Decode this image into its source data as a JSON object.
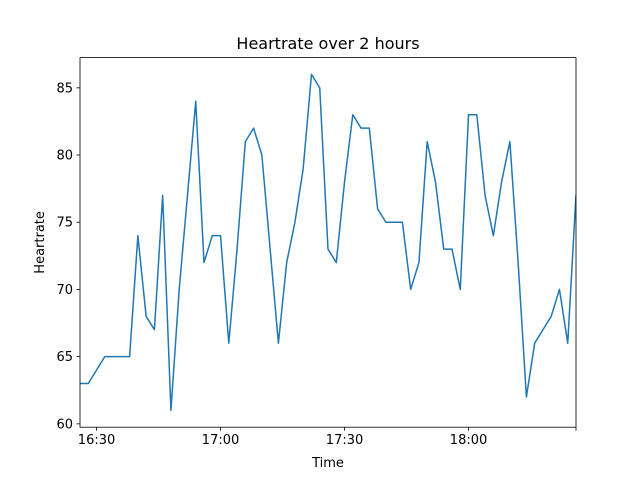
{
  "chart_data": {
    "type": "line",
    "title": "Heartrate over 2 hours",
    "xlabel": "Time",
    "ylabel": "Heartrate",
    "grid": false,
    "legend": "none",
    "line_color": "#1f77b4",
    "x_unit": "time of day (HH:MM)",
    "xlim": [
      "16:26",
      "18:26"
    ],
    "ylim": [
      59.75,
      87.25
    ],
    "x_ticks": [
      "16:30",
      "17:00",
      "17:30",
      "18:00"
    ],
    "x_tick_labels": [
      "16:30",
      "17:00",
      "17:30",
      "18:00"
    ],
    "y_ticks": [
      60,
      65,
      70,
      75,
      80,
      85
    ],
    "y_tick_labels": [
      "60",
      "65",
      "70",
      "75",
      "80",
      "85"
    ],
    "series": [
      {
        "name": "",
        "x": [
          "16:26",
          "16:28",
          "16:32",
          "16:34",
          "16:36",
          "16:38",
          "16:40",
          "16:42",
          "16:44",
          "16:46",
          "16:48",
          "16:50",
          "16:52",
          "16:54",
          "16:56",
          "16:58",
          "17:00",
          "17:02",
          "17:04",
          "17:06",
          "17:08",
          "17:10",
          "17:12",
          "17:14",
          "17:16",
          "17:18",
          "17:20",
          "17:22",
          "17:24",
          "17:26",
          "17:28",
          "17:30",
          "17:32",
          "17:34",
          "17:36",
          "17:38",
          "17:40",
          "17:42",
          "17:44",
          "17:46",
          "17:48",
          "17:50",
          "17:52",
          "17:54",
          "17:56",
          "17:58",
          "18:00",
          "18:02",
          "18:04",
          "18:06",
          "18:08",
          "18:10",
          "18:12",
          "18:14",
          "18:16",
          "18:18",
          "18:20",
          "18:22",
          "18:24",
          "18:26"
        ],
        "values": [
          63,
          63,
          65,
          65,
          65,
          65,
          74,
          68,
          67,
          77,
          61,
          70,
          77,
          84,
          72,
          74,
          74,
          66,
          73,
          81,
          82,
          80,
          73,
          66,
          72,
          75,
          79,
          86,
          85,
          73,
          72,
          78,
          83,
          82,
          82,
          76,
          75,
          75,
          75,
          70,
          72,
          81,
          78,
          73,
          73,
          70,
          83,
          83,
          77,
          74,
          78,
          81,
          72,
          62,
          66,
          67,
          68,
          70,
          66,
          77
        ]
      }
    ]
  }
}
